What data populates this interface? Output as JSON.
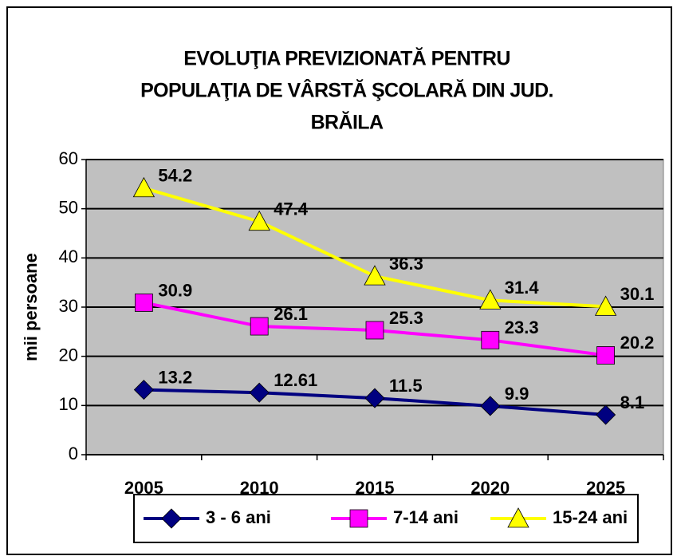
{
  "chart_data": {
    "type": "line",
    "title": [
      "EVOLUŢIA PREVIZIONATĂ PENTRU",
      "POPULAŢIA DE VÂRSTĂ ŞCOLARĂ DIN JUD.",
      "BRĂILA"
    ],
    "y_label": "mii persoane",
    "categories": [
      "2005",
      "2010",
      "2015",
      "2020",
      "2025"
    ],
    "series": [
      {
        "name": "3 - 6 ani",
        "color": "#000080",
        "marker": "diamond",
        "values": [
          13.2,
          12.61,
          11.5,
          9.9,
          8.1
        ]
      },
      {
        "name": "7-14 ani",
        "color": "#ff00ff",
        "marker": "square",
        "values": [
          30.9,
          26.1,
          25.3,
          23.3,
          20.2
        ]
      },
      {
        "name": "15-24 ani",
        "color": "#ffff00",
        "marker": "triangle",
        "values": [
          54.2,
          47.4,
          36.3,
          31.4,
          30.1
        ]
      }
    ],
    "ylim": [
      0,
      60
    ],
    "yticks": [
      0,
      10,
      20,
      30,
      40,
      50,
      60
    ],
    "grid": true,
    "legend": "bottom"
  }
}
